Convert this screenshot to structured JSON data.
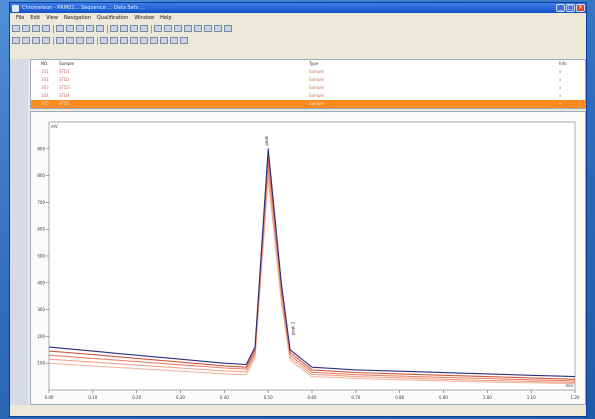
{
  "app": {
    "title": "Chromeleon - PRM02… Sequence … Data Sets …",
    "menu": [
      "File",
      "Edit",
      "View",
      "Navigation",
      "Qualification",
      "Window",
      "Help"
    ]
  },
  "window_controls": {
    "minimize": "_",
    "maximize": "□",
    "close": "×"
  },
  "list": {
    "header": {
      "col_a": "NO.",
      "col_b": "Sample",
      "col_c": "Type",
      "col_d": "Info"
    },
    "rows": [
      {
        "col_a": "101",
        "col_b": "STD1",
        "col_c": "Sample",
        "col_d": "x"
      },
      {
        "col_a": "102",
        "col_b": "STD2",
        "col_c": "Sample",
        "col_d": "x"
      },
      {
        "col_a": "103",
        "col_b": "STD3",
        "col_c": "Sample",
        "col_d": "x"
      },
      {
        "col_a": "104",
        "col_b": "STD4",
        "col_c": "Sample",
        "col_d": "x"
      },
      {
        "col_a": "105",
        "col_b": "STD5",
        "col_c": "Sample",
        "col_d": "x"
      }
    ]
  },
  "status": {
    "left": "",
    "right": ""
  },
  "chart_data": {
    "type": "line",
    "title": "",
    "xlabel": "min",
    "ylabel": "mV",
    "xlim": [
      0.0,
      1.2
    ],
    "ylim": [
      0,
      1000
    ],
    "x_ticks": [
      0.0,
      0.1,
      0.2,
      0.3,
      0.4,
      0.5,
      0.6,
      0.7,
      0.8,
      0.9,
      1.0,
      1.1,
      1.2
    ],
    "y_ticks": [
      100,
      200,
      300,
      400,
      500,
      600,
      700,
      800,
      900
    ],
    "peak_label": "peak",
    "peak2_label": "peak 2",
    "colors": [
      "#2b2f7a",
      "#d2583c",
      "#e8826a",
      "#f2a189",
      "#f0b8a0"
    ],
    "series": [
      {
        "x": [
          0.0,
          0.1,
          0.2,
          0.3,
          0.4,
          0.45,
          0.47,
          0.5,
          0.53,
          0.55,
          0.6,
          0.65,
          0.7,
          0.8,
          0.9,
          1.0,
          1.1,
          1.2
        ],
        "y": [
          160,
          145,
          130,
          115,
          100,
          95,
          160,
          900,
          400,
          150,
          85,
          80,
          75,
          70,
          65,
          60,
          55,
          50
        ]
      },
      {
        "x": [
          0.0,
          0.1,
          0.2,
          0.3,
          0.4,
          0.45,
          0.47,
          0.5,
          0.53,
          0.55,
          0.6,
          0.65,
          0.7,
          0.8,
          0.9,
          1.0,
          1.1,
          1.2
        ],
        "y": [
          145,
          132,
          118,
          104,
          90,
          85,
          150,
          880,
          390,
          140,
          75,
          70,
          65,
          60,
          55,
          50,
          45,
          40
        ]
      },
      {
        "x": [
          0.0,
          0.1,
          0.2,
          0.3,
          0.4,
          0.45,
          0.47,
          0.5,
          0.53,
          0.55,
          0.6,
          0.65,
          0.7,
          0.8,
          0.9,
          1.0,
          1.1,
          1.2
        ],
        "y": [
          130,
          118,
          106,
          94,
          82,
          78,
          140,
          850,
          370,
          130,
          66,
          62,
          57,
          52,
          47,
          43,
          38,
          34
        ]
      },
      {
        "x": [
          0.0,
          0.1,
          0.2,
          0.3,
          0.4,
          0.45,
          0.47,
          0.5,
          0.53,
          0.55,
          0.6,
          0.65,
          0.7,
          0.8,
          0.9,
          1.0,
          1.1,
          1.2
        ],
        "y": [
          115,
          104,
          93,
          82,
          71,
          68,
          130,
          820,
          350,
          120,
          58,
          55,
          50,
          45,
          40,
          36,
          32,
          28
        ]
      },
      {
        "x": [
          0.0,
          0.1,
          0.2,
          0.3,
          0.4,
          0.45,
          0.47,
          0.5,
          0.53,
          0.55,
          0.6,
          0.65,
          0.7,
          0.8,
          0.9,
          1.0,
          1.1,
          1.2
        ],
        "y": [
          100,
          90,
          80,
          70,
          60,
          57,
          120,
          790,
          330,
          110,
          50,
          47,
          43,
          38,
          34,
          30,
          27,
          24
        ]
      }
    ]
  }
}
